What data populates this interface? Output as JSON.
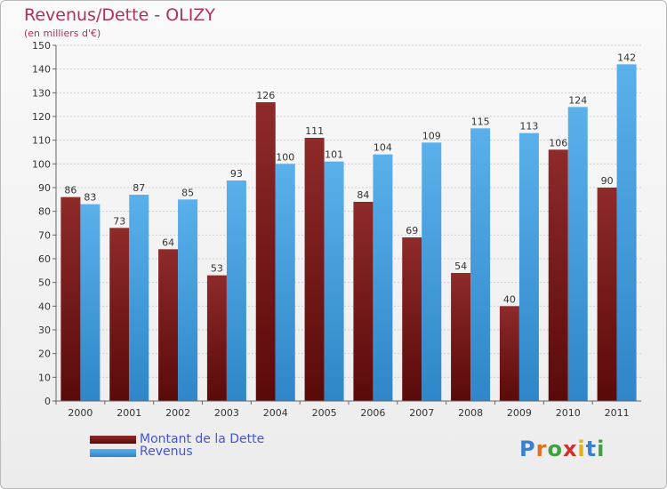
{
  "title": "Revenus/Dette - OLIZY",
  "subtitle": "(en milliers d'€)",
  "logo_text": "Proxiti",
  "colors": {
    "dette": "#7a1a1a",
    "revenus": "#4aa3e0",
    "title": "#b03060",
    "legend_text": "#4455dd"
  },
  "chart_data": {
    "type": "bar",
    "categories": [
      "2000",
      "2001",
      "2002",
      "2003",
      "2004",
      "2005",
      "2006",
      "2007",
      "2008",
      "2009",
      "2010",
      "2011"
    ],
    "series": [
      {
        "name": "Montant de la Dette",
        "values": [
          86,
          73,
          64,
          53,
          126,
          111,
          84,
          69,
          54,
          40,
          106,
          90
        ]
      },
      {
        "name": "Revenus",
        "values": [
          83,
          87,
          85,
          93,
          100,
          101,
          104,
          109,
          115,
          113,
          124,
          142
        ]
      }
    ],
    "ylim": [
      0,
      150
    ],
    "ytick_step": 10,
    "grid": true,
    "legend_position": "bottom-left"
  }
}
